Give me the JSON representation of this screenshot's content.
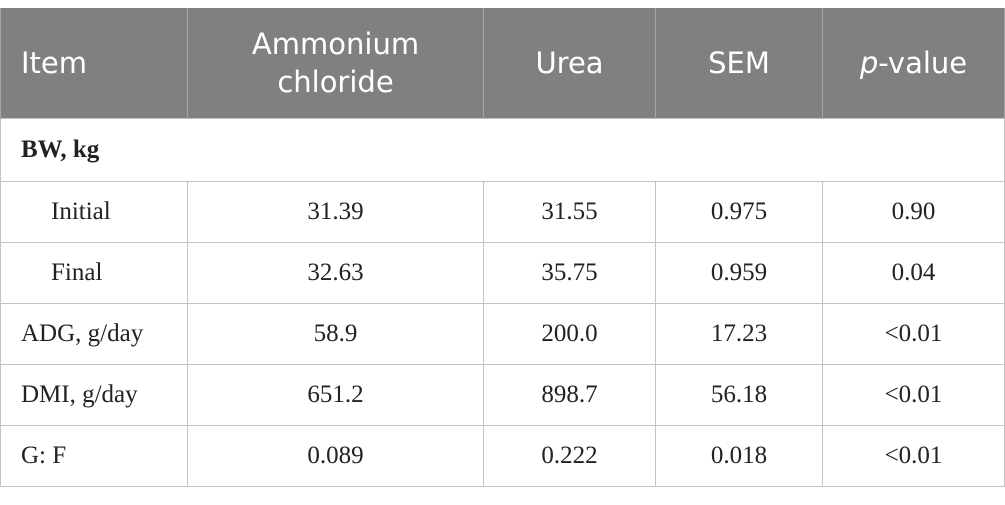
{
  "table": {
    "header": [
      "Item",
      "Ammonium chloride",
      "Urea",
      "SEM",
      {
        "italic": "p",
        "rest": "-value"
      }
    ],
    "group": "BW, kg",
    "rows": [
      [
        "Initial",
        "31.39",
        "31.55",
        "0.975",
        "0.90"
      ],
      [
        "Final",
        "32.63",
        "35.75",
        "0.959",
        "0.04"
      ],
      [
        "ADG, g/day",
        "58.9",
        "200.0",
        "17.23",
        "<0.01"
      ],
      [
        "DMI, g/day",
        "651.2",
        "898.7",
        "56.18",
        "<0.01"
      ],
      [
        "G: F",
        "0.089",
        "0.222",
        "0.018",
        "<0.01"
      ]
    ]
  }
}
